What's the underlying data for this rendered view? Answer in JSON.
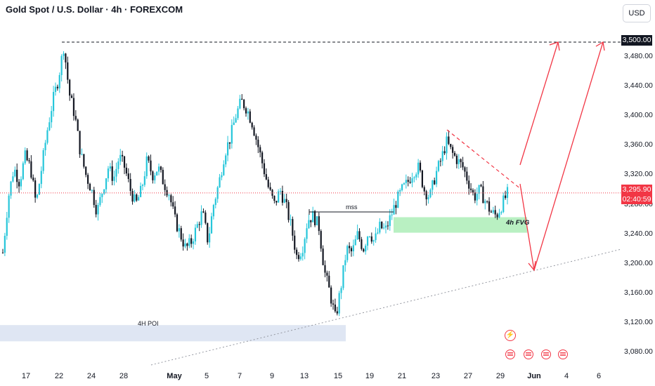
{
  "header": {
    "title": "Gold Spot / U.S. Dollar · 4h · FOREXCOM",
    "currency": "USD"
  },
  "price_tag": {
    "price": "3,295.90",
    "countdown": "02:40:59"
  },
  "target_tag": "3,500.00",
  "colors": {
    "up": "#22ab94",
    "up_light": "#26c6da",
    "down": "#131722",
    "accent": "#f23645",
    "fvg": "#b9f0c2",
    "poi": "#dfe6f3"
  },
  "annotations": {
    "mss": "mss",
    "fvg": "4h FVG",
    "poi": "4H POI"
  },
  "events": [
    "lightning-event-icon",
    "us-flag-event-icon",
    "us-flag-event-icon",
    "us-flag-event-icon",
    "us-flag-event-icon"
  ],
  "chart_data": {
    "type": "candlestick",
    "title": "Gold Spot / U.S. Dollar · 4h · FOREXCOM",
    "ylim": [
      3055,
      3530
    ],
    "y_ticks": [
      "3,480.00",
      "3,440.00",
      "3,400.00",
      "3,360.00",
      "3,320.00",
      "3,280.00",
      "3,240.00",
      "3,200.00",
      "3,160.00",
      "3,120.00",
      "3,080.00"
    ],
    "x_ticks": [
      "17",
      "22",
      "24",
      "28",
      "May",
      "5",
      "7",
      "9",
      "13",
      "15",
      "19",
      "21",
      "23",
      "27",
      "29",
      "Jun",
      "4",
      "6"
    ],
    "price_path": [
      3215,
      3290,
      3330,
      3310,
      3345,
      3330,
      3280,
      3330,
      3380,
      3420,
      3450,
      3495,
      3430,
      3400,
      3350,
      3320,
      3300,
      3270,
      3300,
      3330,
      3315,
      3345,
      3330,
      3300,
      3280,
      3300,
      3340,
      3320,
      3330,
      3310,
      3295,
      3260,
      3240,
      3220,
      3230,
      3250,
      3270,
      3230,
      3280,
      3310,
      3350,
      3370,
      3400,
      3420,
      3410,
      3390,
      3360,
      3330,
      3300,
      3280,
      3300,
      3280,
      3250,
      3210,
      3220,
      3260,
      3265,
      3250,
      3190,
      3160,
      3125,
      3170,
      3220,
      3215,
      3240,
      3220,
      3245,
      3230,
      3250,
      3245,
      3265,
      3285,
      3300,
      3310,
      3325,
      3330,
      3300,
      3290,
      3320,
      3340,
      3365,
      3350,
      3340,
      3330,
      3310,
      3290,
      3300,
      3285,
      3270,
      3265,
      3280,
      3295
    ],
    "levels": {
      "target": 3500,
      "current": 3295.9
    },
    "zones": {
      "fvg": [
        3242,
        3263
      ],
      "poi": [
        3095,
        3117
      ]
    }
  }
}
